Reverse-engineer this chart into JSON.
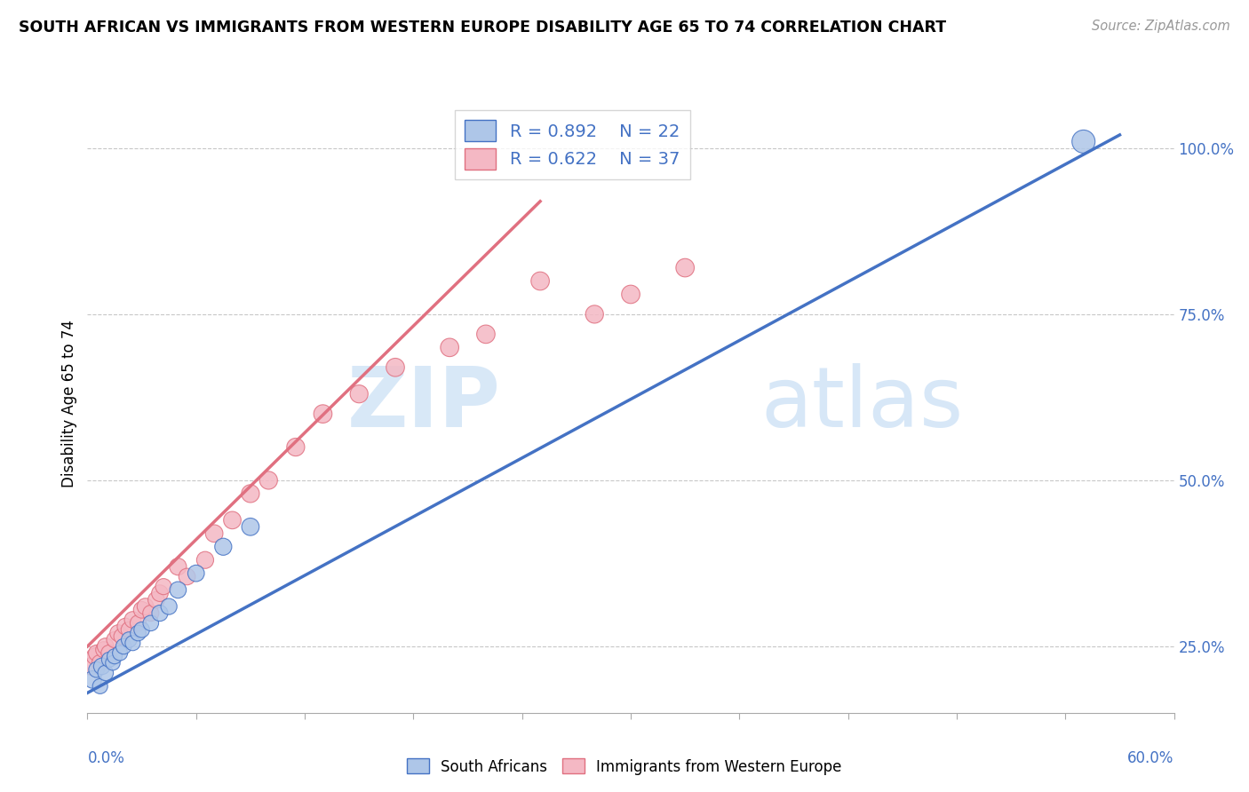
{
  "title": "SOUTH AFRICAN VS IMMIGRANTS FROM WESTERN EUROPE DISABILITY AGE 65 TO 74 CORRELATION CHART",
  "source": "Source: ZipAtlas.com",
  "ylabel_ticks": [
    25.0,
    50.0,
    75.0,
    100.0
  ],
  "xlim": [
    0.0,
    60.0
  ],
  "ylim": [
    15.0,
    108.0
  ],
  "blue_R": 0.892,
  "blue_N": 22,
  "pink_R": 0.622,
  "pink_N": 37,
  "blue_color": "#aec6e8",
  "blue_line_color": "#4472c4",
  "pink_color": "#f4b8c4",
  "pink_line_color": "#e07080",
  "legend_label_blue": "South Africans",
  "legend_label_pink": "Immigrants from Western Europe",
  "blue_line_x0": 0.0,
  "blue_line_y0": 18.0,
  "blue_line_x1": 57.0,
  "blue_line_y1": 102.0,
  "pink_line_x0": 0.0,
  "pink_line_y0": 25.0,
  "pink_line_x1": 25.0,
  "pink_line_y1": 92.0,
  "blue_scatter_x": [
    0.3,
    0.5,
    0.7,
    0.8,
    1.0,
    1.2,
    1.4,
    1.5,
    1.8,
    2.0,
    2.3,
    2.5,
    2.8,
    3.0,
    3.5,
    4.0,
    4.5,
    5.0,
    6.0,
    7.5,
    9.0,
    55.0
  ],
  "blue_scatter_y": [
    20.0,
    21.5,
    19.0,
    22.0,
    21.0,
    23.0,
    22.5,
    23.5,
    24.0,
    25.0,
    26.0,
    25.5,
    27.0,
    27.5,
    28.5,
    30.0,
    31.0,
    33.5,
    36.0,
    40.0,
    43.0,
    101.0
  ],
  "blue_scatter_sizes": [
    200,
    160,
    150,
    180,
    160,
    150,
    140,
    150,
    150,
    160,
    160,
    150,
    160,
    160,
    160,
    170,
    170,
    180,
    180,
    190,
    200,
    350
  ],
  "pink_scatter_x": [
    0.2,
    0.4,
    0.5,
    0.7,
    0.9,
    1.0,
    1.2,
    1.5,
    1.7,
    1.9,
    2.1,
    2.3,
    2.5,
    2.8,
    3.0,
    3.2,
    3.5,
    3.8,
    4.0,
    4.2,
    5.0,
    5.5,
    6.5,
    7.0,
    8.0,
    9.0,
    10.0,
    11.5,
    13.0,
    15.0,
    17.0,
    20.0,
    22.0,
    25.0,
    28.0,
    30.0,
    33.0
  ],
  "pink_scatter_y": [
    22.0,
    23.5,
    24.0,
    22.5,
    24.5,
    25.0,
    24.0,
    26.0,
    27.0,
    26.5,
    28.0,
    27.5,
    29.0,
    28.5,
    30.5,
    31.0,
    30.0,
    32.0,
    33.0,
    34.0,
    37.0,
    35.5,
    38.0,
    42.0,
    44.0,
    48.0,
    50.0,
    55.0,
    60.0,
    63.0,
    67.0,
    70.0,
    72.0,
    80.0,
    75.0,
    78.0,
    82.0
  ],
  "pink_scatter_sizes": [
    200,
    180,
    170,
    180,
    170,
    180,
    170,
    170,
    180,
    170,
    180,
    170,
    180,
    170,
    180,
    180,
    170,
    180,
    180,
    170,
    190,
    180,
    190,
    200,
    200,
    210,
    210,
    210,
    220,
    210,
    220,
    220,
    220,
    220,
    210,
    220,
    220
  ]
}
